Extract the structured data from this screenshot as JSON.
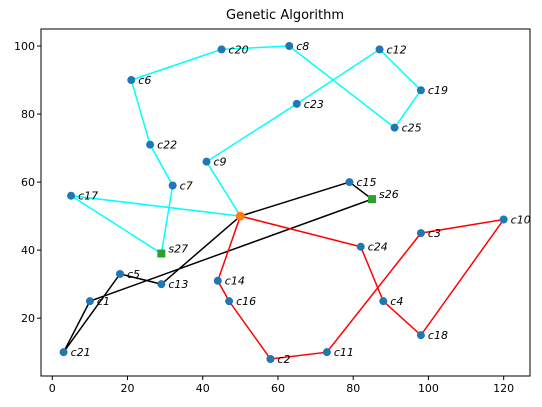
{
  "chart_data": {
    "type": "scatter",
    "title": "Genetic Algorithm",
    "xlabel": "",
    "ylabel": "",
    "xlim": [
      -3,
      127
    ],
    "ylim": [
      3,
      105
    ],
    "xticks": [
      0,
      20,
      40,
      60,
      80,
      100,
      120
    ],
    "yticks": [
      20,
      40,
      60,
      80,
      100
    ],
    "grid": false,
    "colors": {
      "point": "#1f77b4",
      "hub": "#2ca02c",
      "route_cyan": "#00ffff",
      "route_black": "#000000",
      "route_red": "#ff0000",
      "center": "#ff7f0e"
    },
    "center": {
      "x": 50,
      "y": 50
    },
    "points": [
      {
        "name": "c20",
        "x": 45,
        "y": 99
      },
      {
        "name": "c8",
        "x": 63,
        "y": 100
      },
      {
        "name": "c12",
        "x": 87,
        "y": 99
      },
      {
        "name": "c6",
        "x": 21,
        "y": 90
      },
      {
        "name": "c19",
        "x": 98,
        "y": 87
      },
      {
        "name": "c23",
        "x": 65,
        "y": 83
      },
      {
        "name": "c25",
        "x": 91,
        "y": 76
      },
      {
        "name": "c22",
        "x": 26,
        "y": 71
      },
      {
        "name": "c9",
        "x": 41,
        "y": 66
      },
      {
        "name": "c7",
        "x": 32,
        "y": 59
      },
      {
        "name": "c15",
        "x": 79,
        "y": 60
      },
      {
        "name": "c17",
        "x": 5,
        "y": 56
      },
      {
        "name": "c10",
        "x": 120,
        "y": 49
      },
      {
        "name": "c3",
        "x": 98,
        "y": 45
      },
      {
        "name": "c24",
        "x": 82,
        "y": 41
      },
      {
        "name": "c5",
        "x": 18,
        "y": 33
      },
      {
        "name": "c13",
        "x": 29,
        "y": 30
      },
      {
        "name": "c14",
        "x": 44,
        "y": 31
      },
      {
        "name": "c1",
        "x": 10,
        "y": 25
      },
      {
        "name": "c16",
        "x": 47,
        "y": 25
      },
      {
        "name": "c4",
        "x": 88,
        "y": 25
      },
      {
        "name": "c18",
        "x": 98,
        "y": 15
      },
      {
        "name": "c21",
        "x": 3,
        "y": 10
      },
      {
        "name": "c11",
        "x": 73,
        "y": 10
      },
      {
        "name": "c2",
        "x": 58,
        "y": 8
      }
    ],
    "hubs": [
      {
        "name": "s26",
        "x": 85,
        "y": 55
      },
      {
        "name": "s27",
        "x": 29,
        "y": 39
      }
    ],
    "routes": [
      {
        "color": "route_cyan",
        "path": [
          [
            50,
            50
          ],
          [
            41,
            66
          ],
          [
            65,
            83
          ],
          [
            87,
            99
          ],
          [
            98,
            87
          ],
          [
            91,
            76
          ],
          [
            63,
            100
          ],
          [
            45,
            99
          ],
          [
            21,
            90
          ],
          [
            26,
            71
          ],
          [
            32,
            59
          ],
          [
            29,
            39
          ],
          [
            5,
            56
          ],
          [
            50,
            50
          ]
        ]
      },
      {
        "color": "route_black",
        "path": [
          [
            50,
            50
          ],
          [
            79,
            60
          ],
          [
            85,
            55
          ],
          [
            10,
            25
          ],
          [
            3,
            10
          ],
          [
            18,
            33
          ],
          [
            29,
            30
          ],
          [
            50,
            50
          ]
        ]
      },
      {
        "color": "route_red",
        "path": [
          [
            50,
            50
          ],
          [
            82,
            41
          ],
          [
            88,
            25
          ],
          [
            98,
            15
          ],
          [
            120,
            49
          ],
          [
            98,
            45
          ],
          [
            73,
            10
          ],
          [
            58,
            8
          ],
          [
            47,
            25
          ],
          [
            44,
            31
          ],
          [
            50,
            50
          ]
        ]
      }
    ]
  }
}
